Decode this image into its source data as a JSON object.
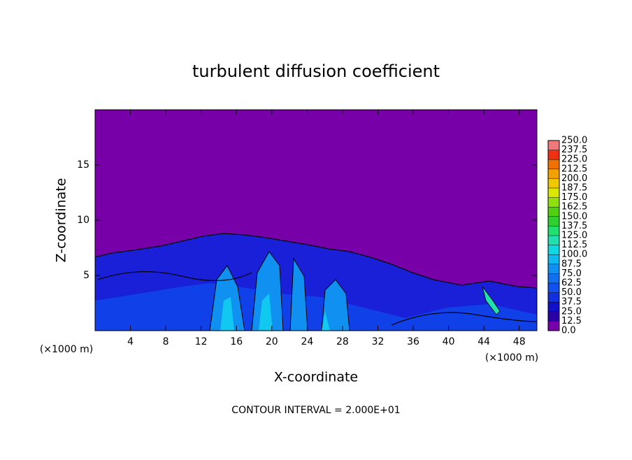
{
  "chart_data": {
    "type": "contour",
    "title": "turbulent diffusion coefficient",
    "x_label": "X-coordinate",
    "y_label": "Z-coordinate",
    "x_unit": "(×1000 m)",
    "y_unit": "(×1000 m)",
    "annotation": "CONTOUR INTERVAL = 2.000E+01",
    "xlim": [
      0,
      50
    ],
    "ylim": [
      0,
      20
    ],
    "xticks": [
      4,
      8,
      12,
      16,
      20,
      24,
      28,
      32,
      36,
      40,
      44,
      48
    ],
    "yticks": [
      5,
      10,
      15
    ],
    "colorbar": {
      "levels": [
        {
          "value": 0,
          "label": "0.0"
        },
        12.5,
        {
          "value": 25,
          "label": "25.0"
        },
        37.5,
        {
          "value": 50,
          "label": "50.0"
        },
        62.5,
        {
          "value": 75,
          "label": "75.0"
        },
        87.5,
        {
          "value": 100,
          "label": "100.0"
        },
        112.5,
        {
          "value": 125,
          "label": "125.0"
        },
        137.5,
        {
          "value": 150,
          "label": "150.0"
        },
        162.5,
        {
          "value": 175,
          "label": "175.0"
        },
        187.5,
        {
          "value": 200,
          "label": "200.0"
        },
        212.5,
        {
          "value": 225,
          "label": "225.0"
        },
        237.5,
        {
          "value": 250,
          "label": "250.0"
        }
      ],
      "colors": [
        "#7800a8",
        "#2a00a8",
        "#1010c8",
        "#1030e0",
        "#1050f0",
        "#1070f0",
        "#1090f0",
        "#10b8f0",
        "#10d8e0",
        "#20e0b0",
        "#20e070",
        "#30d030",
        "#50d010",
        "#90e010",
        "#d8e800",
        "#f0c800",
        "#f0a000",
        "#f07000",
        "#f03010",
        "#f07878"
      ]
    }
  }
}
